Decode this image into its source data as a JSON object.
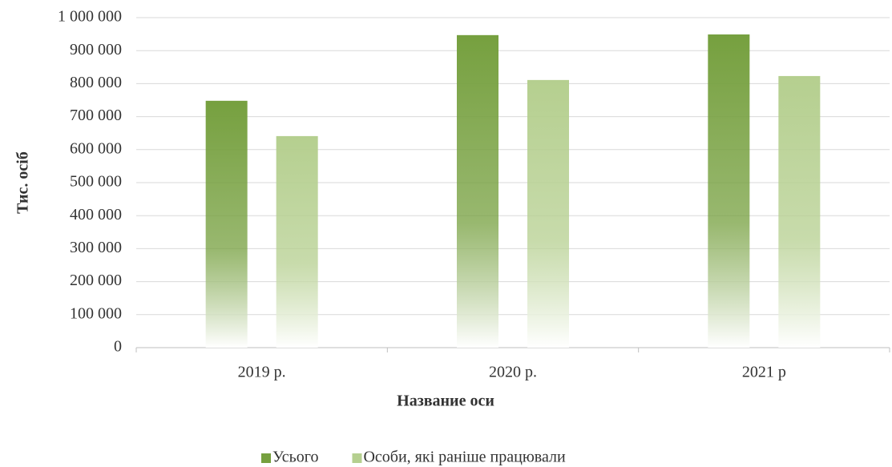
{
  "chart_data": {
    "type": "bar",
    "xlabel": "Название оси",
    "ylabel": "Тис. осіб",
    "categories": [
      "2019 р.",
      "2020 р.",
      "2021 р"
    ],
    "series": [
      {
        "name": "Усього",
        "color": "#76a03f",
        "values": [
          748000,
          947000,
          949000
        ]
      },
      {
        "name": "Особи, які раніше працювали",
        "color": "#b5cf8f",
        "values": [
          641000,
          811000,
          823000
        ]
      }
    ],
    "ylim": [
      0,
      1000000
    ],
    "yticks": [
      0,
      {
        "value": 100000,
        "label": "100 000"
      },
      {
        "value": 200000,
        "label": "200 000"
      },
      {
        "value": 300000,
        "label": "300 000"
      },
      {
        "value": 400000,
        "label": "400 000"
      },
      {
        "value": 500000,
        "label": "500 000"
      },
      {
        "value": 600000,
        "label": "600 000"
      },
      {
        "value": 700000,
        "label": "700 000"
      },
      {
        "value": 800000,
        "label": "800 000"
      },
      {
        "value": 900000,
        "label": "900 000"
      },
      {
        "value": 1000000,
        "label": "1 000 000"
      }
    ],
    "grid": true,
    "legend": "bottom"
  }
}
